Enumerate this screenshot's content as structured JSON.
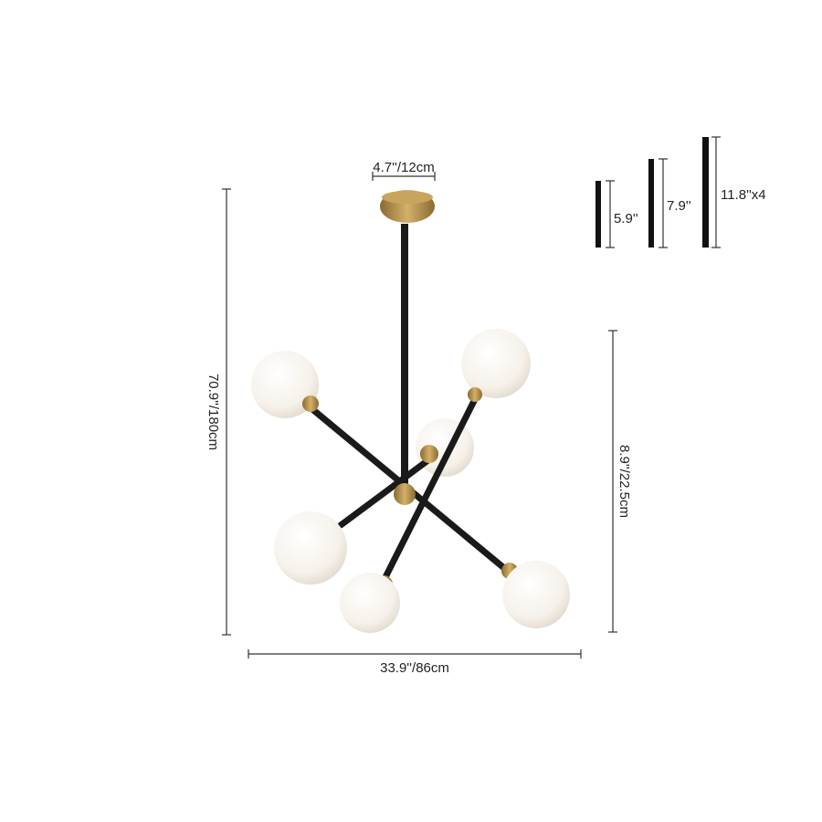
{
  "dimensions": {
    "canopy_width": "4.7''/12cm",
    "overall_height": "70.9''/180cm",
    "fixture_height": "8.9''/22.5cm",
    "overall_width": "33.9''/86cm"
  },
  "rods": [
    {
      "label": "5.9''"
    },
    {
      "label": "7.9''"
    },
    {
      "label": "11.8''x4"
    }
  ],
  "colors": {
    "brass": "#b8904a",
    "arm": "#1a1a1a",
    "globe": "#f7f3ee",
    "dimension_line": "#333333"
  }
}
